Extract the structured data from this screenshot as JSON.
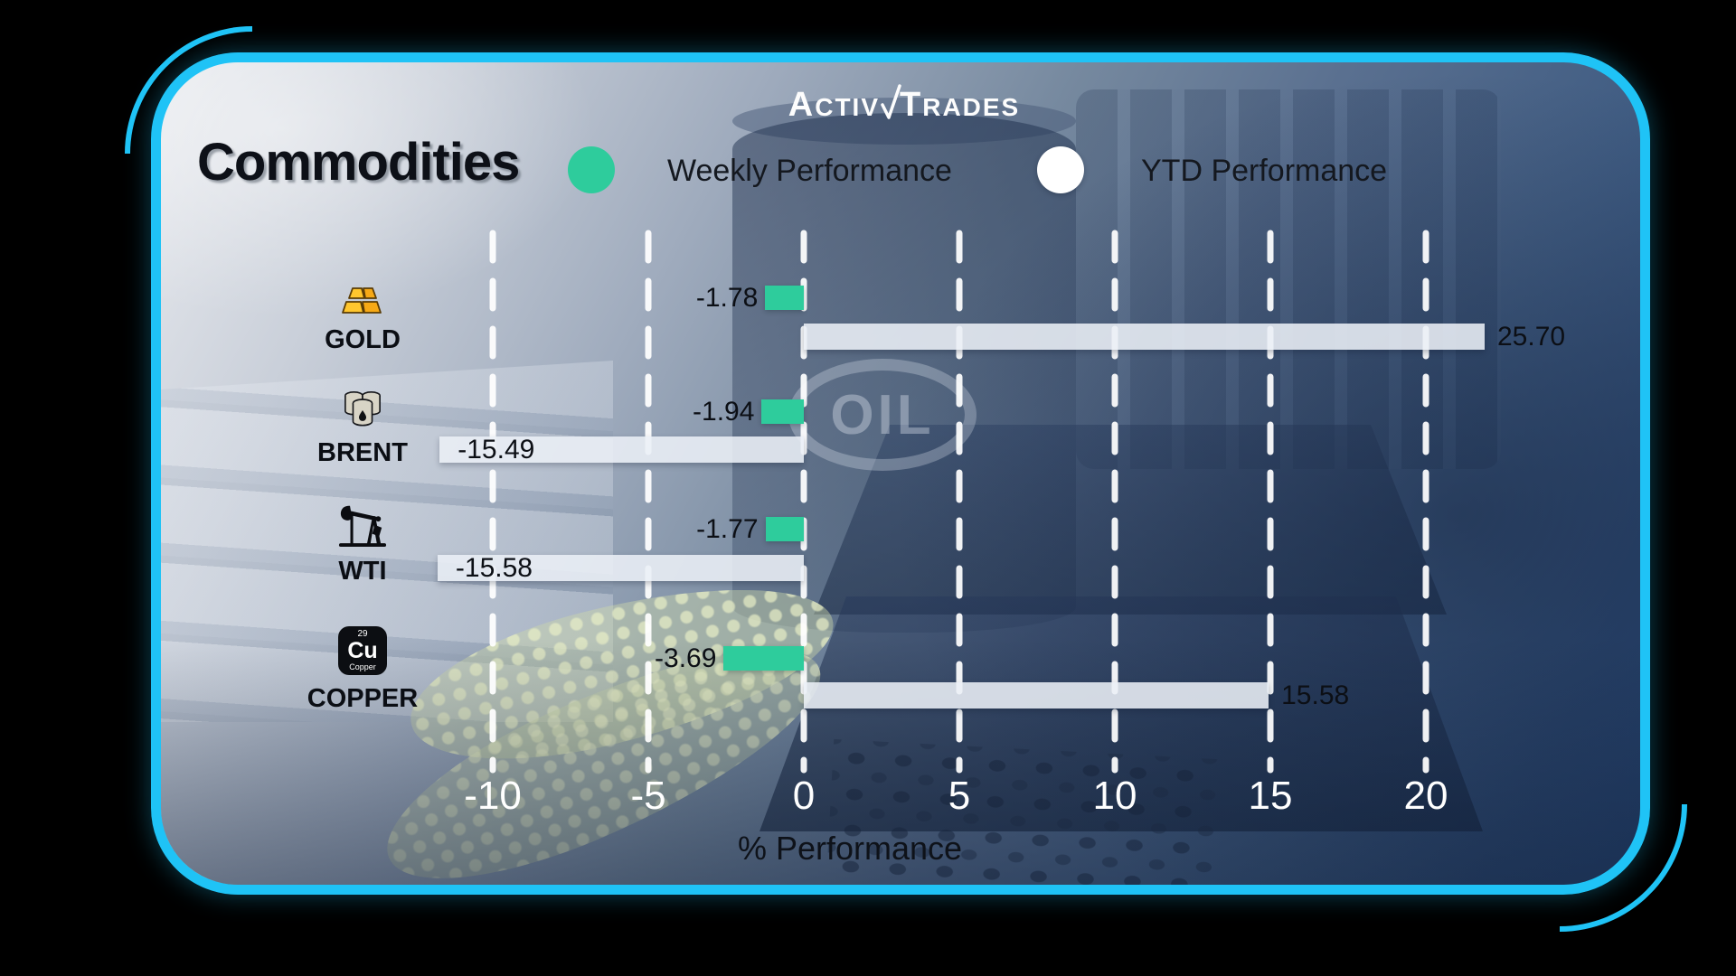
{
  "brand": {
    "initial_1": "A",
    "rest_1": "CTIV",
    "initial_2": "T",
    "rest_2": "RADES"
  },
  "title": "Commodities",
  "legend": {
    "weekly": "Weekly Performance",
    "ytd": "YTD Performance"
  },
  "colors": {
    "weekly_bar": "#2ecc9c",
    "ytd_bar": "#eaeff6",
    "accent_border": "#1fc3f6",
    "tick_text": "#ffffff",
    "value_text": "#0c0f15"
  },
  "commodities": [
    {
      "name": "GOLD",
      "icon": "gold-bars-icon",
      "weekly_label": "-1.78",
      "ytd_label": "25.70"
    },
    {
      "name": "BRENT",
      "icon": "oil-barrels-icon",
      "weekly_label": "-1.94",
      "ytd_label": "-15.49"
    },
    {
      "name": "WTI",
      "icon": "oil-pump-icon",
      "weekly_label": "-1.77",
      "ytd_label": "-15.58"
    },
    {
      "name": "COPPER",
      "icon": "copper-element-icon",
      "weekly_label": "-3.69",
      "ytd_label": "15.58",
      "icon_details": {
        "atomic_number": "29",
        "symbol": "Cu",
        "label": "Copper"
      }
    }
  ],
  "chart_data": {
    "type": "bar",
    "orientation": "horizontal",
    "categories": [
      "GOLD",
      "BRENT",
      "WTI",
      "COPPER"
    ],
    "series": [
      {
        "name": "Weekly Performance",
        "color": "#2ecc9c",
        "values": [
          -1.78,
          -1.94,
          -1.77,
          -3.69
        ]
      },
      {
        "name": "YTD Performance",
        "color": "#eaeff6",
        "values": [
          25.7,
          -15.49,
          -15.58,
          15.58
        ]
      }
    ],
    "x_ticks": [
      -10,
      -5,
      0,
      5,
      10,
      15,
      20
    ],
    "xlim": [
      -12.5,
      22.5
    ],
    "xlabel": "% Performance",
    "grid": "dashed-vertical-white",
    "legend_position": "top",
    "watermark": "OIL"
  }
}
